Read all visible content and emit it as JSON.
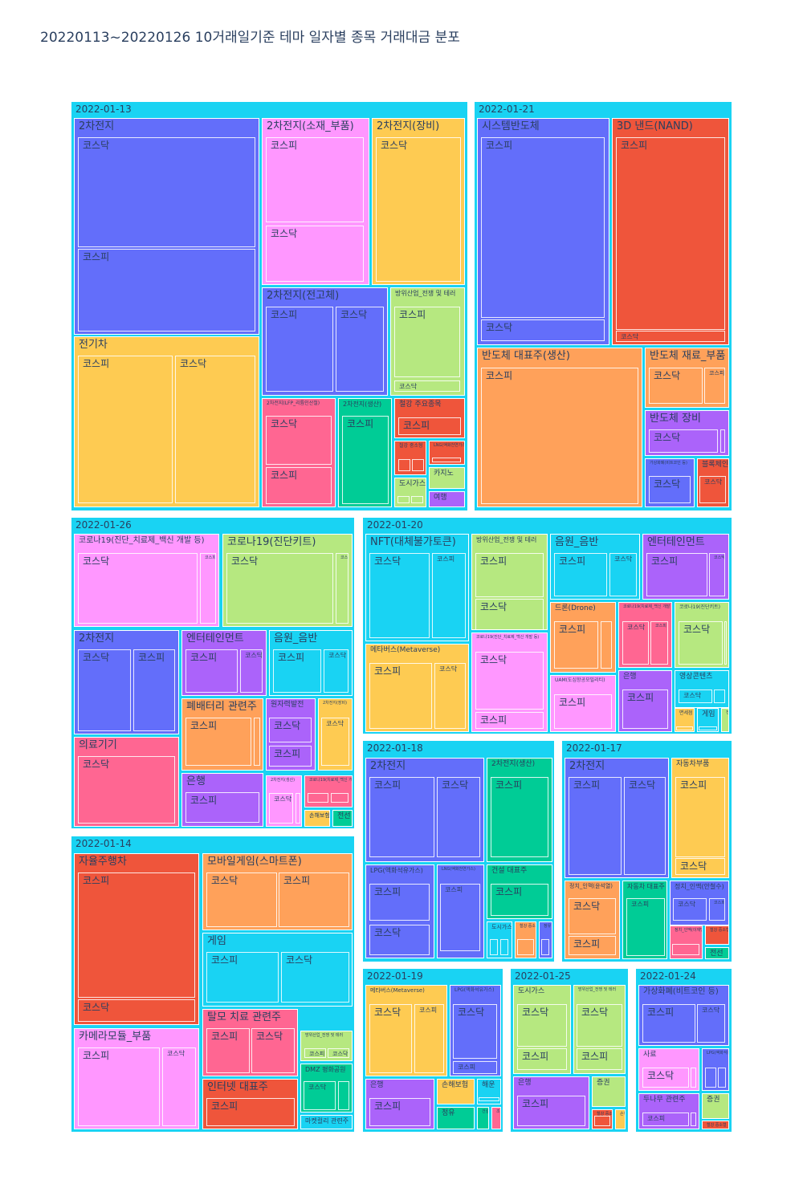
{
  "title": "20220113~20220126 10거래일기준 테마 일자별 종목 거래대금 분포",
  "chart_data": {
    "type": "treemap",
    "title": "20220113~20220126 10거래일기준 테마 일자별 종목 거래대금 분포",
    "colors": {
      "root": "#19d3f3",
      "blue": "#636efa",
      "red": "#ef553b",
      "green": "#00cc96",
      "purple": "#ab63fa",
      "orange": "#ffa15a",
      "cyan": "#19d3f3",
      "pink": "#ff6692",
      "lime": "#b6e880",
      "lpink": "#ff97ff",
      "yellow": "#fecb52"
    },
    "days": [
      {
        "date": "2022-01-13",
        "themes": [
          {
            "name": "2차전지",
            "color": "blue",
            "stocks": [
              "코스닥",
              "코스피"
            ]
          },
          {
            "name": "2차전지(소재_부품)",
            "color": "lpink",
            "stocks": [
              "코스피",
              "코스닥"
            ]
          },
          {
            "name": "2차전지(장비)",
            "color": "yellow",
            "stocks": [
              "코스닥"
            ]
          },
          {
            "name": "전기차",
            "color": "yellow",
            "stocks": [
              "코스피",
              "코스닥"
            ]
          },
          {
            "name": "2차전지(전고체)",
            "color": "blue",
            "stocks": [
              "코스피",
              "코스닥"
            ]
          },
          {
            "name": "방위산업_전쟁 및 테러",
            "color": "lime",
            "stocks": [
              "코스피",
              "코스닥"
            ]
          },
          {
            "name": "2차전지(LFP_리튬인산철)",
            "color": "pink",
            "stocks": [
              "코스닥",
              "코스피"
            ]
          },
          {
            "name": "2차전지(생산)",
            "color": "green",
            "stocks": [
              "코스피"
            ]
          },
          {
            "name": "철강 주요종목",
            "color": "red",
            "stocks": [
              "코스피"
            ]
          },
          {
            "name": "철강 중소형",
            "color": "red",
            "stocks": [
              "",
              ""
            ]
          },
          {
            "name": "LNG(액화천연가스)",
            "color": "red",
            "stocks": [
              ""
            ]
          },
          {
            "name": "도시가스",
            "color": "lime",
            "stocks": [
              "",
              ""
            ]
          },
          {
            "name": "카지노",
            "color": "lime",
            "stocks": []
          },
          {
            "name": "여행",
            "color": "purple",
            "stocks": []
          }
        ]
      },
      {
        "date": "2022-01-21",
        "themes": [
          {
            "name": "시스템반도체",
            "color": "blue",
            "stocks": [
              "코스피",
              "코스닥"
            ]
          },
          {
            "name": "3D 낸드(NAND)",
            "color": "red",
            "stocks": [
              "코스피",
              "코스닥"
            ]
          },
          {
            "name": "반도체 대표주(생산)",
            "color": "orange",
            "stocks": [
              "코스피"
            ]
          },
          {
            "name": "반도체 재료_부품",
            "color": "orange",
            "stocks": [
              "코스닥",
              "코스피"
            ]
          },
          {
            "name": "반도체 장비",
            "color": "purple",
            "stocks": [
              "코스닥",
              ""
            ]
          },
          {
            "name": "가상화폐(비트코인 등)",
            "color": "blue",
            "stocks": [
              "코스닥"
            ]
          },
          {
            "name": "블록체인",
            "color": "red",
            "stocks": [
              "코스닥"
            ]
          }
        ]
      },
      {
        "date": "2022-01-26",
        "themes": [
          {
            "name": "코로나19(진단_치료제_백신 개발 등)",
            "color": "lpink",
            "stocks": [
              "코스닥",
              "코스피"
            ]
          },
          {
            "name": "코로나19(진단키트)",
            "color": "lime",
            "stocks": [
              "코스닥",
              "코스피"
            ]
          },
          {
            "name": "2차전지",
            "color": "blue",
            "stocks": [
              "코스닥",
              "코스피"
            ]
          },
          {
            "name": "엔터테인먼트",
            "color": "purple",
            "stocks": [
              "코스피",
              "코스닥"
            ]
          },
          {
            "name": "음원_음반",
            "color": "cyan",
            "stocks": [
              "코스피",
              "코스닥"
            ]
          },
          {
            "name": "폐배터리 관련주",
            "color": "orange",
            "stocks": [
              "코스피",
              ""
            ]
          },
          {
            "name": "원자력발전",
            "color": "purple",
            "stocks": [
              "코스닥",
              "코스피"
            ]
          },
          {
            "name": "2차전지(장비)",
            "color": "yellow",
            "stocks": [
              "코스닥"
            ]
          },
          {
            "name": "의료기기",
            "color": "pink",
            "stocks": [
              "코스닥"
            ]
          },
          {
            "name": "은행",
            "color": "purple",
            "stocks": [
              "코스피"
            ]
          },
          {
            "name": "2차전지(생산)",
            "color": "lpink",
            "stocks": [
              "코스닥",
              ""
            ]
          },
          {
            "name": "코로나19(치료제_백신 개발 등)",
            "color": "pink",
            "stocks": [
              "",
              ""
            ]
          },
          {
            "name": "손해보험",
            "color": "yellow",
            "stocks": []
          },
          {
            "name": "전선",
            "color": "green",
            "stocks": []
          }
        ]
      },
      {
        "date": "2022-01-20",
        "themes": [
          {
            "name": "NFT(대체불가토큰)",
            "color": "cyan",
            "stocks": [
              "코스닥",
              "코스피"
            ]
          },
          {
            "name": "방위산업_전쟁 및 테러",
            "color": "lime",
            "stocks": [
              "코스피",
              "코스닥"
            ]
          },
          {
            "name": "음원_음반",
            "color": "cyan",
            "stocks": [
              "코스피",
              "코스닥"
            ]
          },
          {
            "name": "엔터테인먼트",
            "color": "purple",
            "stocks": [
              "코스피",
              "코스닥"
            ]
          },
          {
            "name": "메타버스(Metaverse)",
            "color": "yellow",
            "stocks": [
              "코스피",
              "코스닥"
            ]
          },
          {
            "name": "코로나19(진단_치료제_백신 개발 등)",
            "color": "lpink",
            "stocks": [
              "코스닥",
              "코스피"
            ]
          },
          {
            "name": "드론(Drone)",
            "color": "orange",
            "stocks": [
              "코스피",
              ""
            ]
          },
          {
            "name": "코로나19(치료제_백신 개발 등)",
            "color": "pink",
            "stocks": [
              "코스닥",
              "코스피"
            ]
          },
          {
            "name": "코로나19(진단키트)",
            "color": "lime",
            "stocks": [
              "코스닥",
              ""
            ]
          },
          {
            "name": "UAM(도심항공모빌리티)",
            "color": "lpink",
            "stocks": [
              "코스피"
            ]
          },
          {
            "name": "은행",
            "color": "purple",
            "stocks": [
              "코스피"
            ]
          },
          {
            "name": "영상콘텐츠",
            "color": "cyan",
            "stocks": [
              "코스닥",
              ""
            ]
          },
          {
            "name": "면세점",
            "color": "yellow",
            "stocks": [
              ""
            ]
          },
          {
            "name": "게임",
            "color": "cyan",
            "stocks": [
              ""
            ]
          },
          {
            "name": "전선",
            "color": "lime",
            "stocks": []
          }
        ]
      },
      {
        "date": "2022-01-18",
        "themes": [
          {
            "name": "2차전지",
            "color": "blue",
            "stocks": [
              "코스피",
              "코스닥"
            ]
          },
          {
            "name": "2차전지(생산)",
            "color": "green",
            "stocks": [
              "코스피"
            ]
          },
          {
            "name": "LPG(액화석유가스)",
            "color": "blue",
            "stocks": [
              "코스피",
              "코스닥"
            ]
          },
          {
            "name": "LNG(액화천연가스)",
            "color": "blue",
            "stocks": [
              "코스피"
            ]
          },
          {
            "name": "건설 대표주",
            "color": "green",
            "stocks": [
              "코스피"
            ]
          },
          {
            "name": "도시가스",
            "color": "cyan",
            "stocks": [
              "",
              ""
            ]
          },
          {
            "name": "철강 중소형",
            "color": "orange",
            "stocks": [
              ""
            ]
          },
          {
            "name": "정유",
            "color": "blue",
            "stocks": [
              ""
            ]
          }
        ]
      },
      {
        "date": "2022-01-17",
        "themes": [
          {
            "name": "2차전지",
            "color": "blue",
            "stocks": [
              "코스피",
              "코스닥"
            ]
          },
          {
            "name": "자동차부품",
            "color": "yellow",
            "stocks": [
              "코스피",
              "코스닥"
            ]
          },
          {
            "name": "정치_인맥(윤석열)",
            "color": "orange",
            "stocks": [
              "코스닥",
              "코스피"
            ]
          },
          {
            "name": "자동차 대표주",
            "color": "green",
            "stocks": [
              "코스피"
            ]
          },
          {
            "name": "정치_인맥(안철수)",
            "color": "blue",
            "stocks": [
              "코스닥",
              "코스피"
            ]
          },
          {
            "name": "정치_인맥(이재명)",
            "color": "pink",
            "stocks": [
              ""
            ]
          },
          {
            "name": "철강 중소형",
            "color": "red",
            "stocks": []
          },
          {
            "name": "전선",
            "color": "green",
            "stocks": []
          }
        ]
      },
      {
        "date": "2022-01-14",
        "themes": [
          {
            "name": "자율주행차",
            "color": "red",
            "stocks": [
              "코스피",
              "코스닥"
            ]
          },
          {
            "name": "모바일게임(스마트폰)",
            "color": "orange",
            "stocks": [
              "코스닥",
              "코스피"
            ]
          },
          {
            "name": "게임",
            "color": "cyan",
            "stocks": [
              "코스피",
              "코스닥"
            ]
          },
          {
            "name": "카메라모듈_부품",
            "color": "lpink",
            "stocks": [
              "코스피",
              "코스닥"
            ]
          },
          {
            "name": "탈모 치료 관련주",
            "color": "pink",
            "stocks": [
              "코스피",
              "코스닥"
            ]
          },
          {
            "name": "방위산업_전쟁 및 테러",
            "color": "lime",
            "stocks": [
              "코스피",
              "코스닥"
            ]
          },
          {
            "name": "DMZ 평화공원",
            "color": "green",
            "stocks": [
              "코스닥",
              ""
            ]
          },
          {
            "name": "인터넷 대표주",
            "color": "red",
            "stocks": [
              "코스피"
            ]
          },
          {
            "name": "마켓컬리 관련주",
            "color": "cyan",
            "stocks": []
          }
        ]
      },
      {
        "date": "2022-01-19",
        "themes": [
          {
            "name": "메타버스(Metaverse)",
            "color": "yellow",
            "stocks": [
              "코스닥",
              "코스피"
            ]
          },
          {
            "name": "LPG(액화석유가스)",
            "color": "blue",
            "stocks": [
              "코스닥",
              "코스피"
            ]
          },
          {
            "name": "은행",
            "color": "purple",
            "stocks": [
              "코스피"
            ]
          },
          {
            "name": "손해보험",
            "color": "yellow",
            "stocks": []
          },
          {
            "name": "정유",
            "color": "green",
            "stocks": []
          },
          {
            "name": "해운",
            "color": "cyan",
            "stocks": [
              ""
            ]
          },
          {
            "name": "건설 대표주",
            "color": "green",
            "stocks": []
          },
          {
            "name": "조선",
            "color": "pink",
            "stocks": []
          }
        ]
      },
      {
        "date": "2022-01-25",
        "themes": [
          {
            "name": "도시가스",
            "color": "lime",
            "stocks": [
              "코스닥",
              "코스피"
            ]
          },
          {
            "name": "방위산업_전쟁 및 테러",
            "color": "lime",
            "stocks": [
              "코스닥",
              "코스피"
            ]
          },
          {
            "name": "은행",
            "color": "purple",
            "stocks": [
              "코스피"
            ]
          },
          {
            "name": "증권",
            "color": "lime",
            "stocks": []
          },
          {
            "name": "철강 중소형",
            "color": "red",
            "stocks": [
              ""
            ]
          },
          {
            "name": "손해보험",
            "color": "yellow",
            "stocks": []
          }
        ]
      },
      {
        "date": "2022-01-24",
        "themes": [
          {
            "name": "가상화폐(비트코인 등)",
            "color": "blue",
            "stocks": [
              "코스피",
              "코스닥"
            ]
          },
          {
            "name": "사료",
            "color": "lpink",
            "stocks": [
              "코스닥",
              ""
            ]
          },
          {
            "name": "LPG(액화석유가스)",
            "color": "blue",
            "stocks": [
              "",
              ""
            ]
          },
          {
            "name": "두나무 관련주",
            "color": "purple",
            "stocks": [
              "코스피",
              ""
            ]
          },
          {
            "name": "증권",
            "color": "lime",
            "stocks": []
          },
          {
            "name": "철강 중소형",
            "color": "red",
            "stocks": []
          }
        ]
      }
    ]
  }
}
